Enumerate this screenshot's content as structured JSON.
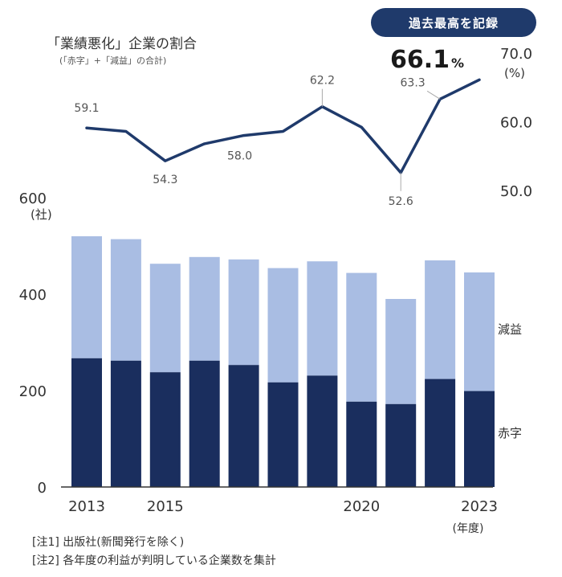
{
  "badge": "過去最高を記録",
  "title": "「業績悪化」企業の割合",
  "subtitle": "(「赤字」+「減益」の合計)",
  "highlight": {
    "value": "66.1",
    "unit": "%"
  },
  "notes": [
    "[注1] 出版社(新聞発行を除く)",
    "[注2] 各年度の利益が判明している企業数を集計"
  ],
  "colors": {
    "dark": "#1a2e5e",
    "light": "#a9bde3",
    "line": "#1f3a6b",
    "axis": "#333333"
  },
  "chart_data": [
    {
      "type": "line",
      "x": [
        2013,
        2014,
        2015,
        2016,
        2017,
        2018,
        2019,
        2020,
        2021,
        2022,
        2023
      ],
      "series": [
        {
          "values": [
            59.1,
            58.6,
            54.3,
            56.8,
            58.0,
            58.6,
            62.2,
            59.2,
            52.6,
            63.3,
            66.1
          ]
        }
      ],
      "data_labels": [
        {
          "index": 0,
          "text": "59.1"
        },
        {
          "index": 2,
          "text": "54.3"
        },
        {
          "index": 4,
          "text": "58.0"
        },
        {
          "index": 6,
          "text": "62.2"
        },
        {
          "index": 8,
          "text": "52.6"
        },
        {
          "index": 9,
          "text": "63.3"
        }
      ],
      "y_ticks": [
        "70.0",
        "60.0",
        "50.0"
      ],
      "y_unit": "(%)",
      "ylim": [
        50,
        70
      ]
    },
    {
      "type": "bar",
      "stacked": true,
      "categories": [
        2013,
        2014,
        2015,
        2016,
        2017,
        2018,
        2019,
        2020,
        2021,
        2022,
        2023
      ],
      "x_tick_labels": [
        "2013",
        "",
        "2015",
        "",
        "",
        "",
        "",
        "2020",
        "",
        "",
        "2023"
      ],
      "x_unit": "(年度)",
      "series": [
        {
          "name": "赤字",
          "values": [
            267,
            262,
            238,
            262,
            253,
            217,
            231,
            177,
            172,
            224,
            199
          ]
        },
        {
          "name": "減益",
          "values": [
            253,
            252,
            225,
            215,
            219,
            237,
            237,
            267,
            218,
            246,
            246
          ]
        }
      ],
      "y_ticks": [
        "600",
        "400",
        "200",
        "0"
      ],
      "y_unit": "(社)",
      "ylim": [
        0,
        600
      ]
    }
  ]
}
